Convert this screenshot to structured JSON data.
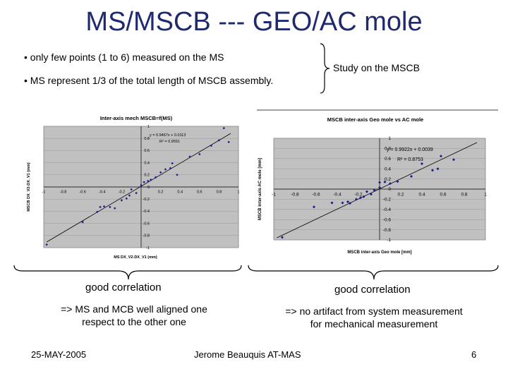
{
  "slide": {
    "title": "MS/MSCB --- GEO/AC mole",
    "bullets": [
      "• only few points (1 to 6)  measured on the MS",
      "• MS represent 1/3 of the total length of MSCB assembly."
    ],
    "brace_label": "Study on the MSCB",
    "left_caption": "good correlation",
    "left_note_1": "=> MS and MCB well aligned one",
    "left_note_2": "respect to the other one",
    "right_caption": "good correlation",
    "right_note_1": "=> no artifact from system measurement",
    "right_note_2": "for mechanical measurement",
    "date": "25-MAY-2005",
    "author": "Jerome Beauquis AT-MAS",
    "page": "6"
  },
  "colors": {
    "title": "#1f2a6e",
    "plot_bg": "#c0c0c0",
    "points": "#1a1a8c"
  },
  "chart_data": [
    {
      "type": "scatter",
      "title": "Inter-axis mech MSCB=f(MS)",
      "xlabel": "MS DX_V2-DX_V1 (mm)",
      "ylabel": "MSCB DX_V2-DX_V1 (mm)",
      "xlim": [
        -1,
        1
      ],
      "ylim": [
        -1,
        1
      ],
      "xticks": [
        "-1",
        "-0.8",
        "-0.6",
        "-0.4",
        "-0.2",
        "0",
        "0.2",
        "0.4",
        "0.6",
        "0.8",
        "1"
      ],
      "yticks": [
        "-1",
        "-0.8",
        "-0.6",
        "-0.4",
        "-0.2",
        "0",
        "0.2",
        "0.4",
        "0.6",
        "0.8",
        "1"
      ],
      "equation": "y = 0.9467x + 0.0113",
      "r2": "R² = 0.9591",
      "trendline": {
        "slope": 0.9467,
        "intercept": 0.0113
      },
      "points": [
        [
          -0.97,
          -0.95
        ],
        [
          -0.6,
          -0.58
        ],
        [
          -0.45,
          -0.41
        ],
        [
          -0.42,
          -0.33
        ],
        [
          -0.38,
          -0.32
        ],
        [
          -0.32,
          -0.33
        ],
        [
          -0.27,
          -0.35
        ],
        [
          -0.2,
          -0.22
        ],
        [
          -0.15,
          -0.19
        ],
        [
          -0.12,
          -0.14
        ],
        [
          -0.1,
          -0.04
        ],
        [
          -0.05,
          -0.1
        ],
        [
          0.0,
          0.03
        ],
        [
          0.03,
          0.08
        ],
        [
          0.07,
          0.1
        ],
        [
          0.1,
          0.12
        ],
        [
          0.15,
          0.16
        ],
        [
          0.2,
          0.24
        ],
        [
          0.25,
          0.29
        ],
        [
          0.3,
          0.31
        ],
        [
          0.32,
          0.39
        ],
        [
          0.37,
          0.2
        ],
        [
          0.5,
          0.5
        ],
        [
          0.6,
          0.54
        ],
        [
          0.72,
          0.68
        ],
        [
          0.8,
          0.77
        ],
        [
          0.85,
          0.97
        ],
        [
          0.9,
          0.74
        ]
      ]
    },
    {
      "type": "scatter",
      "title": "MSCB inter-axis Geo mole vs AC mole",
      "xlabel": "MSCB inter-axis Geo mole [mm]",
      "ylabel": "MSCB inter-axis AC mole [mm]",
      "xlim": [
        -1,
        1
      ],
      "ylim": [
        -1,
        1
      ],
      "xticks": [
        "-1",
        "-0.8",
        "-0.6",
        "-0.4",
        "-0.2",
        "0",
        "0.2",
        "0.4",
        "0.6",
        "0.8",
        "1"
      ],
      "yticks": [
        "-1",
        "-0.8",
        "-0.6",
        "-0.4",
        "-0.2",
        "0",
        "0.2",
        "0.4",
        "0.6",
        "0.8",
        "1"
      ],
      "equation": "y = 0.9922x + 0.0039",
      "r2": "R² = 0.8753",
      "trendline": {
        "slope": 0.9922,
        "intercept": 0.0039
      },
      "points": [
        [
          -0.92,
          -0.95
        ],
        [
          -0.62,
          -0.35
        ],
        [
          -0.45,
          -0.27
        ],
        [
          -0.35,
          -0.27
        ],
        [
          -0.3,
          -0.25
        ],
        [
          -0.28,
          -0.28
        ],
        [
          -0.22,
          -0.2
        ],
        [
          -0.18,
          -0.17
        ],
        [
          -0.15,
          -0.15
        ],
        [
          -0.12,
          -0.05
        ],
        [
          -0.08,
          -0.1
        ],
        [
          -0.05,
          -0.02
        ],
        [
          0.0,
          0.03
        ],
        [
          0.0,
          0.13
        ],
        [
          0.05,
          0.14
        ],
        [
          0.1,
          0.11
        ],
        [
          0.17,
          0.15
        ],
        [
          0.3,
          0.25
        ],
        [
          0.4,
          0.5
        ],
        [
          0.5,
          0.37
        ],
        [
          0.55,
          0.4
        ],
        [
          0.58,
          0.65
        ],
        [
          0.7,
          0.58
        ]
      ]
    }
  ]
}
